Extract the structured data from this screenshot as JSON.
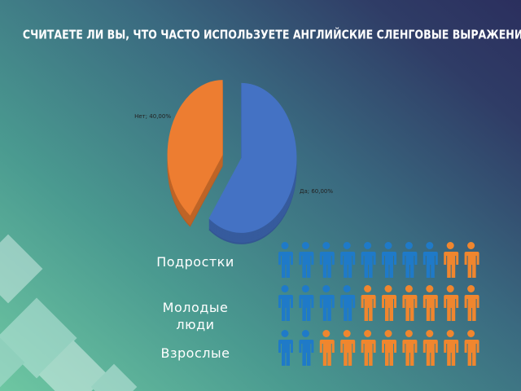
{
  "chart_data": [
    {
      "type": "pie",
      "title": "СЧИТАЕТЕ ЛИ ВЫ, ЧТО ЧАСТО ИСПОЛЬЗУЕТЕ АНГЛИЙСКИЕ СЛЕНГОВЫЕ ВЫРАЖЕНИЯ?",
      "categories": [
        "Да",
        "Нет"
      ],
      "values": [
        60,
        40
      ],
      "value_labels": [
        "Да; 60,00%",
        "Нет; 40,00%"
      ],
      "colors": [
        "#4472c4",
        "#ed7d31"
      ]
    },
    {
      "type": "pictogram",
      "categories": [
        "Подростки",
        "Молодые люди",
        "Взрослые"
      ],
      "series": [
        {
          "color": "#1f7ac8",
          "values": [
            8,
            4,
            2
          ]
        },
        {
          "color": "#f0862e",
          "values": [
            2,
            6,
            8
          ]
        }
      ]
    }
  ]
}
